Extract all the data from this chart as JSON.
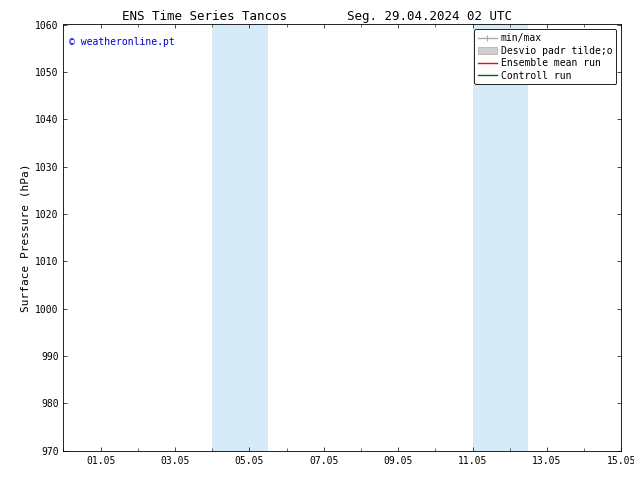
{
  "title_left": "ENS Time Series Tancos",
  "title_right": "Seg. 29.04.2024 02 UTC",
  "ylabel": "Surface Pressure (hPa)",
  "xlim": [
    0.0,
    15.0
  ],
  "ylim": [
    970,
    1060
  ],
  "yticks": [
    970,
    980,
    990,
    1000,
    1010,
    1020,
    1030,
    1040,
    1050,
    1060
  ],
  "xtick_labels": [
    "01.05",
    "03.05",
    "05.05",
    "07.05",
    "09.05",
    "11.05",
    "13.05",
    "15.05"
  ],
  "xtick_positions": [
    1.0,
    3.0,
    5.0,
    7.0,
    9.0,
    11.0,
    13.0,
    15.0
  ],
  "shaded_bands": [
    {
      "x_start": 4.0,
      "x_end": 5.5
    },
    {
      "x_start": 11.0,
      "x_end": 12.5
    }
  ],
  "shade_color": "#d6eaf8",
  "background_color": "#ffffff",
  "watermark_text": "© weatheronline.pt",
  "watermark_color": "#0000cc",
  "legend_labels": [
    "min/max",
    "Desvio padr tilde;o",
    "Ensemble mean run",
    "Controll run"
  ],
  "legend_colors": [
    "#aaaaaa",
    "#cccccc",
    "#ff0000",
    "#006600"
  ],
  "title_fontsize": 9,
  "tick_fontsize": 7,
  "ylabel_fontsize": 8,
  "legend_fontsize": 7,
  "watermark_fontsize": 7
}
